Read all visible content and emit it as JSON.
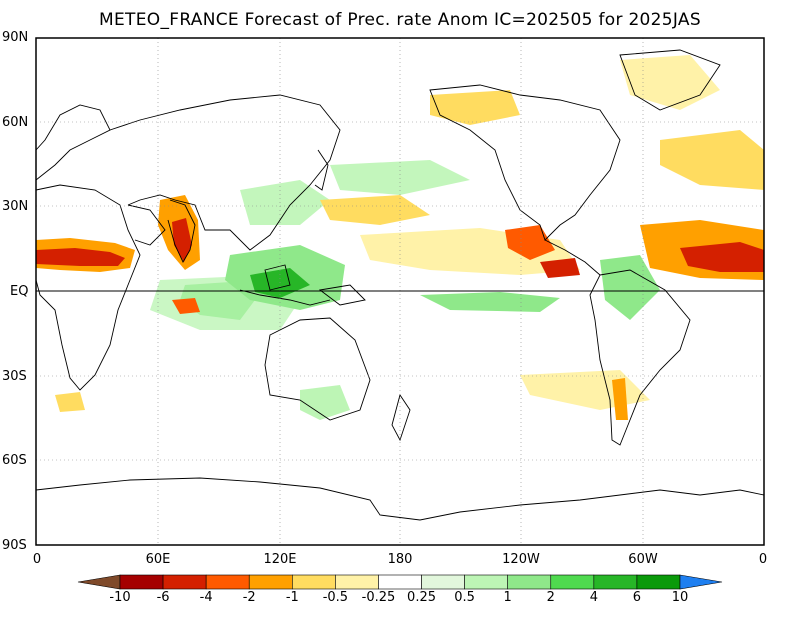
{
  "title": "METEO_FRANCE Forecast of Prec. rate Anom IC=202505 for 2025JAS",
  "lat_labels": [
    "90N",
    "60N",
    "30N",
    "EQ",
    "30S",
    "60S",
    "90S"
  ],
  "lon_labels": [
    "0",
    "60E",
    "120E",
    "180",
    "120W",
    "60W",
    "0"
  ],
  "colorbar": {
    "labels": [
      "-10",
      "-6",
      "-4",
      "-2",
      "-1",
      "-0.5",
      "-0.25",
      "0.25",
      "0.5",
      "1",
      "2",
      "4",
      "6",
      "10"
    ],
    "colors": [
      "#7f4a2a",
      "#a50000",
      "#d42000",
      "#ff5a00",
      "#ffa000",
      "#ffdc60",
      "#fff2a8",
      "#ffffff",
      "#e2f7dc",
      "#bdf5b5",
      "#8fe88a",
      "#4fda4f",
      "#27b627",
      "#0a9a0a",
      "#1e7ff0"
    ]
  },
  "colors": {
    "equator_line": "#000000",
    "grid": "#888888",
    "coast": "#000000"
  }
}
